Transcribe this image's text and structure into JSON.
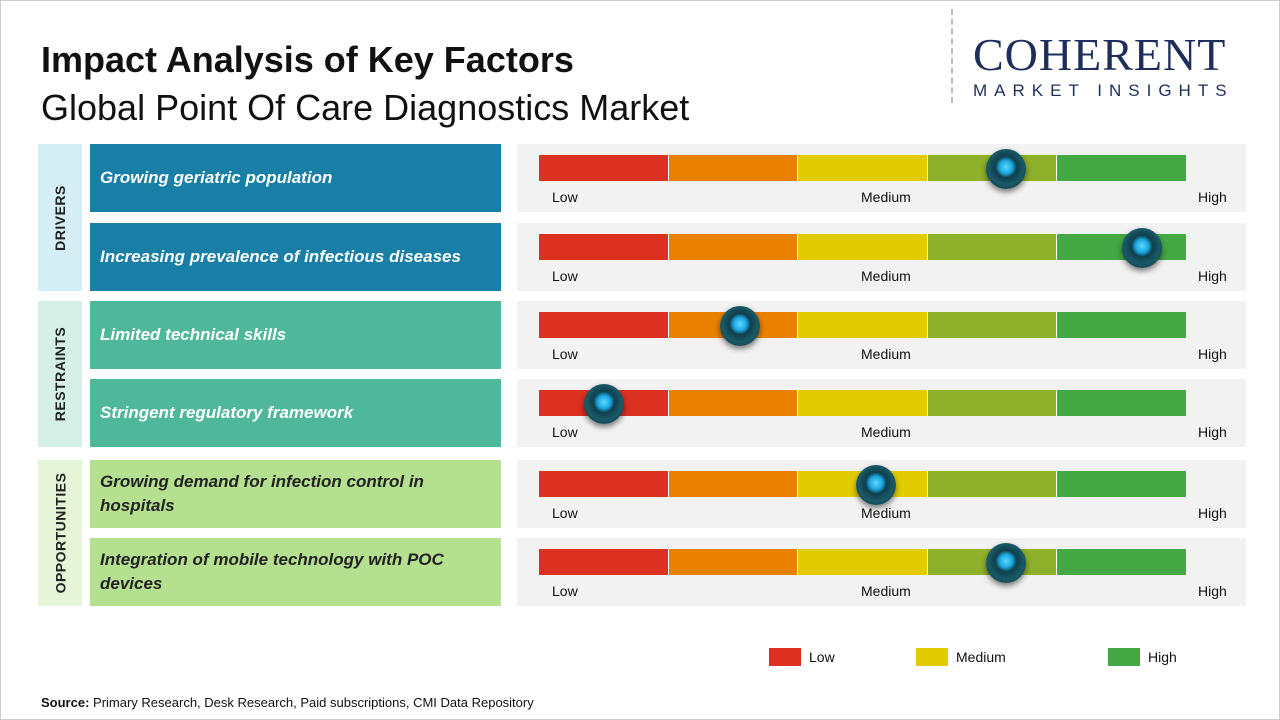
{
  "header": {
    "title": "Impact Analysis of Key Factors",
    "subtitle": "Global Point Of Care Diagnostics Market"
  },
  "logo": {
    "name": "COHERENT",
    "tagline": "MARKET INSIGHTS"
  },
  "chart_data": {
    "type": "gauge",
    "scale_labels": [
      "Low",
      "Medium",
      "High"
    ],
    "segment_colors": [
      "#dc3020",
      "#ea8000",
      "#e2cc00",
      "#8eb02a",
      "#44a845"
    ],
    "groups": [
      {
        "name": "DRIVERS",
        "label_bg": "#1a7fa6",
        "side_bg": "#d6eef6",
        "text_color": "#ffffff",
        "factors": [
          {
            "label": "Growing geriatric population",
            "impact": 0.72
          },
          {
            "label": "Increasing prevalence of infectious diseases",
            "impact": 0.93
          }
        ]
      },
      {
        "name": "RESTRAINTS",
        "label_bg": "#4fb89a",
        "side_bg": "#d6f0e8",
        "text_color": "#ffffff",
        "factors": [
          {
            "label": "Limited technical skills",
            "impact": 0.31
          },
          {
            "label": "Stringent regulatory framework",
            "impact": 0.1
          }
        ]
      },
      {
        "name": "OPPORTUNITIES",
        "label_bg": "#b5e08f",
        "side_bg": "#e6f5d8",
        "text_color": "#222222",
        "factors": [
          {
            "label": "Growing demand for infection control in hospitals",
            "impact": 0.52
          },
          {
            "label": "Integration of mobile technology with POC devices",
            "impact": 0.72
          }
        ]
      }
    ],
    "legend": [
      {
        "label": "Low",
        "color": "#dc3020"
      },
      {
        "label": "Medium",
        "color": "#e2cc00"
      },
      {
        "label": "High",
        "color": "#44a845"
      }
    ]
  },
  "source": {
    "label": "Source:",
    "text": " Primary Research, Desk Research, Paid subscriptions, CMI Data Repository"
  }
}
